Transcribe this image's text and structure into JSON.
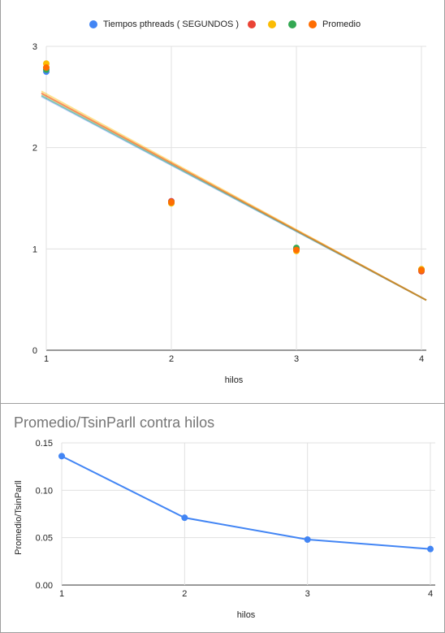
{
  "chart_data": [
    {
      "type": "scatter",
      "title": "",
      "xlabel": "hilos",
      "ylabel": "",
      "xlim": [
        1,
        4
      ],
      "ylim": [
        0,
        3
      ],
      "x_ticks": [
        "1",
        "2",
        "3",
        "4"
      ],
      "y_ticks": [
        "0",
        "1",
        "2",
        "3"
      ],
      "grid": true,
      "legend_position": "top",
      "series": [
        {
          "name": "Tiempos pthreads ( SEGUNDOS )",
          "color": "#4285f4",
          "x": [
            1,
            2,
            3,
            4
          ],
          "y": [
            2.75,
            1.47,
            1.0,
            0.79
          ],
          "trendline": [
            2.48,
            0.52
          ]
        },
        {
          "name": "",
          "color": "#ea4335",
          "x": [
            1,
            2,
            3,
            4
          ],
          "y": [
            2.79,
            1.47,
            0.99,
            0.78
          ],
          "trendline": [
            2.51,
            0.52
          ]
        },
        {
          "name": "",
          "color": "#fbbc04",
          "x": [
            1,
            2,
            3,
            4
          ],
          "y": [
            2.83,
            1.45,
            0.98,
            0.8
          ],
          "trendline": [
            2.53,
            0.52
          ]
        },
        {
          "name": "",
          "color": "#34a853",
          "x": [
            1,
            2,
            3,
            4
          ],
          "y": [
            2.77,
            1.46,
            1.01,
            0.79
          ],
          "trendline": [
            2.49,
            0.52
          ]
        },
        {
          "name": "Promedio",
          "color": "#ff6d01",
          "x": [
            1,
            2,
            3,
            4
          ],
          "y": [
            2.79,
            1.46,
            0.99,
            0.79
          ],
          "trendline": [
            2.51,
            0.52
          ]
        }
      ]
    },
    {
      "type": "line",
      "title": "Promedio/TsinParll contra hilos",
      "xlabel": "hilos",
      "ylabel": "Promedio/TsinParll",
      "xlim": [
        1,
        4
      ],
      "ylim": [
        0,
        0.15
      ],
      "x_ticks": [
        "1",
        "2",
        "3",
        "4"
      ],
      "y_ticks": [
        "0.00",
        "0.05",
        "0.10",
        "0.15"
      ],
      "grid": true,
      "series": [
        {
          "name": "",
          "color": "#4285f4",
          "x": [
            1,
            2,
            3,
            4
          ],
          "y": [
            0.136,
            0.071,
            0.048,
            0.038
          ]
        }
      ]
    }
  ]
}
